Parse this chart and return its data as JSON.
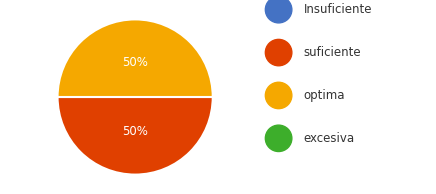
{
  "slices": [
    {
      "label": "Insuficiente",
      "value": 0,
      "color": "#4472c4"
    },
    {
      "label": "suficiente",
      "value": 50,
      "color": "#e04000"
    },
    {
      "label": "optima",
      "value": 50,
      "color": "#f5a800"
    },
    {
      "label": "excesiva",
      "value": 0,
      "color": "#3dae2b"
    }
  ],
  "active_slices": [
    {
      "label": "suficiente",
      "value": 50,
      "color": "#e04000"
    },
    {
      "label": "optima",
      "value": 50,
      "color": "#f5a800"
    }
  ],
  "label_color": "white",
  "label_fontsize": 8.5,
  "background_color": "#ffffff",
  "legend_fontsize": 8.5,
  "startangle": 180,
  "pct_labels": [
    "50%",
    "50%"
  ],
  "legend_colors": [
    "#4472c4",
    "#e04000",
    "#f5a800",
    "#3dae2b"
  ],
  "legend_labels": [
    "Insuficiente",
    "suficiente",
    "optima",
    "excesiva"
  ]
}
